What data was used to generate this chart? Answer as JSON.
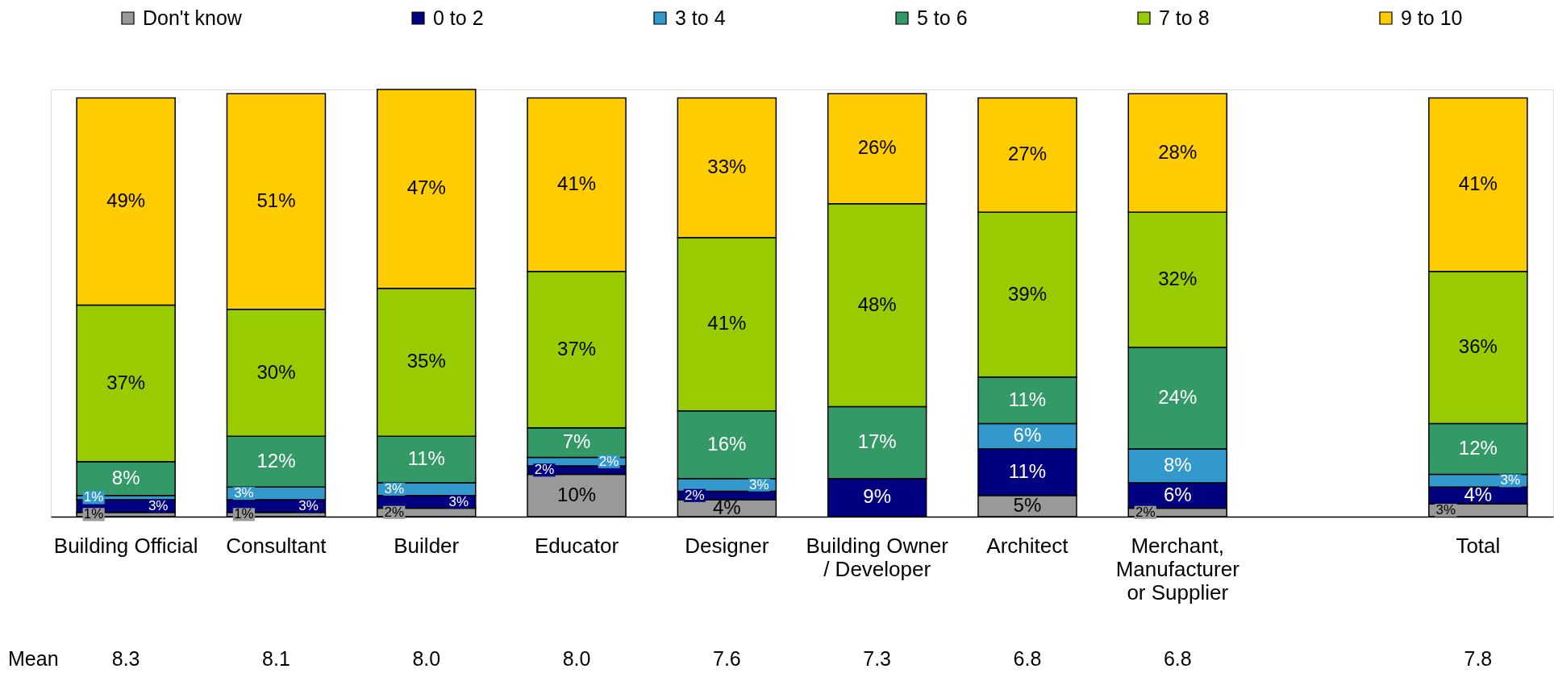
{
  "chart_data": {
    "type": "bar",
    "stacked": true,
    "legend": "top",
    "categories": [
      "Building Official",
      "Consultant",
      "Builder",
      "Educator",
      "Designer",
      "Building Owner\n/ Developer",
      "Architect",
      "Merchant,\nManufacturer\nor Supplier",
      null,
      "Total"
    ],
    "series": [
      {
        "name": "Don't know",
        "color": "#999999",
        "values": [
          1,
          1,
          2,
          10,
          4,
          null,
          5,
          2,
          null,
          3
        ],
        "value_labels": [
          "1%",
          "1%",
          "2%",
          "10%",
          "4%",
          null,
          "5%",
          "2%",
          null,
          "3%"
        ]
      },
      {
        "name": "0 to 2",
        "color": "#000080",
        "values": [
          3,
          3,
          3,
          2,
          2,
          9,
          11,
          6,
          null,
          4
        ],
        "value_labels": [
          "3%",
          "3%",
          "3%",
          "2%",
          "2%",
          "9%",
          "11%",
          "6%",
          null,
          "4%"
        ]
      },
      {
        "name": "3 to 4",
        "color": "#3399cc",
        "values": [
          1,
          3,
          3,
          2,
          3,
          null,
          6,
          8,
          null,
          3
        ],
        "value_labels": [
          "1%",
          "3%",
          "3%",
          "2%",
          "3%",
          null,
          "6%",
          "8%",
          null,
          "3%"
        ]
      },
      {
        "name": "5 to 6",
        "color": "#339966",
        "values": [
          8,
          12,
          11,
          7,
          16,
          17,
          11,
          24,
          null,
          12
        ],
        "value_labels": [
          "8%",
          "12%",
          "11%",
          "7%",
          "16%",
          "17%",
          "11%",
          "24%",
          null,
          "12%"
        ]
      },
      {
        "name": "7 to 8",
        "color": "#99cc00",
        "values": [
          37,
          30,
          35,
          37,
          41,
          48,
          39,
          32,
          null,
          36
        ],
        "value_labels": [
          "37%",
          "30%",
          "35%",
          "37%",
          "41%",
          "48%",
          "39%",
          "32%",
          null,
          "36%"
        ]
      },
      {
        "name": "9 to 10",
        "color": "#ffcc00",
        "values": [
          49,
          51,
          47,
          41,
          33,
          26,
          27,
          28,
          null,
          41
        ],
        "value_labels": [
          "49%",
          "51%",
          "47%",
          "41%",
          "33%",
          "26%",
          "27%",
          "28%",
          null,
          "41%"
        ]
      }
    ],
    "annotations": [
      "Mean",
      "8.3",
      "8.1",
      "8.0",
      "8.0",
      "7.6",
      "7.3",
      "6.8",
      "6.8",
      "7.8"
    ]
  }
}
